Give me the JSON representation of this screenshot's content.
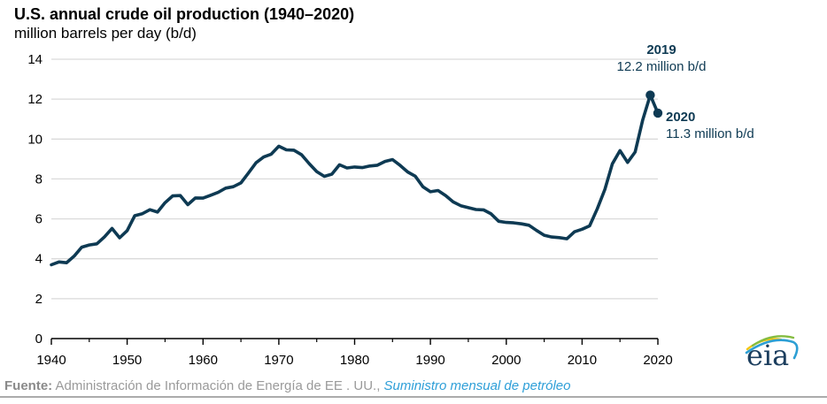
{
  "chart_data": {
    "type": "line",
    "title": "U.S. annual crude oil production (1940–2020)",
    "subtitle": "million barrels per day (b/d)",
    "xlabel": "",
    "ylabel": "million barrels per day (b/d)",
    "xlim": [
      1940,
      2020
    ],
    "ylim": [
      0,
      14
    ],
    "yticks": [
      0,
      2,
      4,
      6,
      8,
      10,
      12,
      14
    ],
    "xticks_major": [
      1940,
      1950,
      1960,
      1970,
      1980,
      1990,
      2000,
      2010,
      2020
    ],
    "xticks_minor": [
      1945,
      1955,
      1965,
      1975,
      1985,
      1995,
      2005,
      2015
    ],
    "grid": "horizontal",
    "legend": "none",
    "line_color": "#0E3A53",
    "grid_color": "#DADADA",
    "axis_color": "#000000",
    "years": [
      1940,
      1941,
      1942,
      1943,
      1944,
      1945,
      1946,
      1947,
      1948,
      1949,
      1950,
      1951,
      1952,
      1953,
      1954,
      1955,
      1956,
      1957,
      1958,
      1959,
      1960,
      1961,
      1962,
      1963,
      1964,
      1965,
      1966,
      1967,
      1968,
      1969,
      1970,
      1971,
      1972,
      1973,
      1974,
      1975,
      1976,
      1977,
      1978,
      1979,
      1980,
      1981,
      1982,
      1983,
      1984,
      1985,
      1986,
      1987,
      1988,
      1989,
      1990,
      1991,
      1992,
      1993,
      1994,
      1995,
      1996,
      1997,
      1998,
      1999,
      2000,
      2001,
      2002,
      2003,
      2004,
      2005,
      2006,
      2007,
      2008,
      2009,
      2010,
      2011,
      2012,
      2013,
      2014,
      2015,
      2016,
      2017,
      2018,
      2019,
      2020
    ],
    "values": [
      3.7,
      3.84,
      3.8,
      4.13,
      4.58,
      4.69,
      4.75,
      5.09,
      5.52,
      5.05,
      5.41,
      6.16,
      6.26,
      6.46,
      6.34,
      6.81,
      7.15,
      7.17,
      6.71,
      7.05,
      7.04,
      7.18,
      7.33,
      7.54,
      7.61,
      7.8,
      8.3,
      8.81,
      9.1,
      9.24,
      9.64,
      9.46,
      9.44,
      9.21,
      8.77,
      8.37,
      8.13,
      8.24,
      8.71,
      8.55,
      8.6,
      8.57,
      8.65,
      8.69,
      8.88,
      8.97,
      8.68,
      8.35,
      8.14,
      7.61,
      7.36,
      7.42,
      7.17,
      6.85,
      6.66,
      6.56,
      6.47,
      6.45,
      6.25,
      5.88,
      5.82,
      5.8,
      5.75,
      5.68,
      5.42,
      5.18,
      5.09,
      5.06,
      5.0,
      5.35,
      5.48,
      5.65,
      6.5,
      7.47,
      8.76,
      9.42,
      8.83,
      9.35,
      10.96,
      12.2,
      11.3
    ],
    "annotations": [
      {
        "year": 2019,
        "value": 12.2,
        "label": "2019",
        "value_label": "12.2 million b/d"
      },
      {
        "year": 2020,
        "value": 11.3,
        "label": "2020",
        "value_label": "11.3 million b/d"
      }
    ]
  },
  "source": {
    "prefix": "Fuente:",
    "text": "Administración de Información de Energía de EE . UU., ",
    "link": "Suministro mensual de petróleo"
  },
  "logo": {
    "text": "eia"
  }
}
